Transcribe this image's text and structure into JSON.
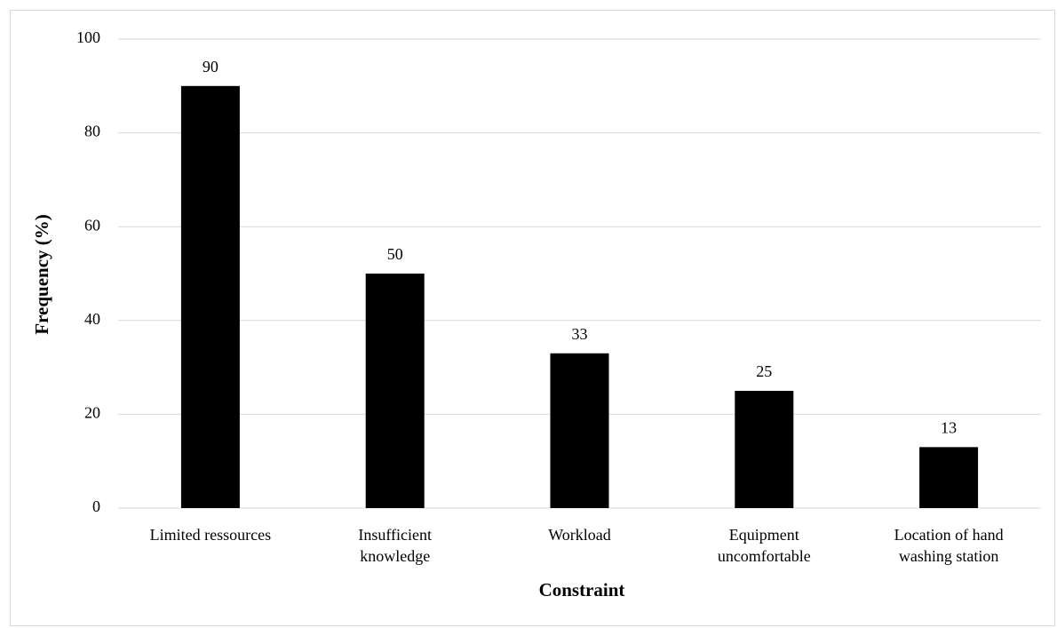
{
  "chart_data": {
    "type": "bar",
    "categories": [
      [
        "Limited ressources"
      ],
      [
        "Insufficient",
        "knowledge"
      ],
      [
        "Workload"
      ],
      [
        "Equipment",
        "uncomfortable"
      ],
      [
        "Location of hand",
        "washing station"
      ]
    ],
    "values": [
      90,
      50,
      33,
      25,
      13
    ],
    "data_labels": [
      "90",
      "50",
      "33",
      "25",
      "13"
    ],
    "xlabel": "Constraint",
    "ylabel": "Frequency (%)",
    "ylim": [
      0,
      100
    ],
    "yticks": [
      0,
      20,
      40,
      60,
      80,
      100
    ],
    "grid": "horizontal",
    "legend": "none",
    "colors": {
      "bar": "#000000",
      "grid": "#d9d9d9",
      "axis": "#d9d9d9",
      "frame": "#d9d9d9"
    }
  }
}
